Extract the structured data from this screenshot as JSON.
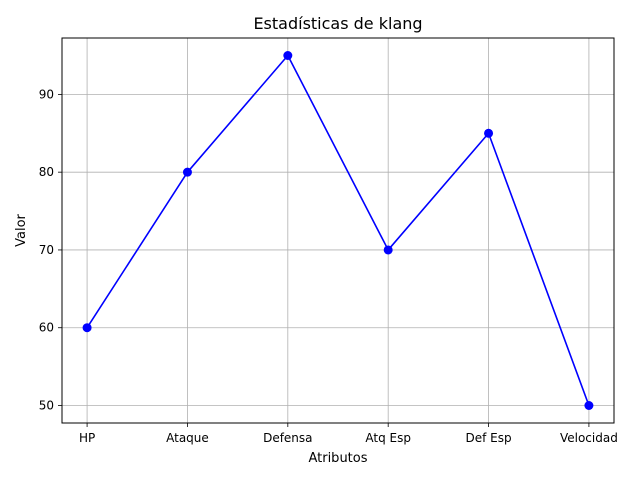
{
  "chart_data": {
    "type": "line",
    "title": "Estadísticas de klang",
    "xlabel": "Atributos",
    "ylabel": "Valor",
    "categories": [
      "HP",
      "Ataque",
      "Defensa",
      "Atq Esp",
      "Def Esp",
      "Velocidad"
    ],
    "series": [
      {
        "values": [
          60,
          80,
          95,
          70,
          85,
          50
        ],
        "color": "#0000ff",
        "marker": "circle"
      }
    ],
    "ylim": [
      47.75,
      97.25
    ],
    "yticks": [
      50,
      60,
      70,
      80,
      90
    ],
    "grid": true,
    "legend": "none"
  }
}
